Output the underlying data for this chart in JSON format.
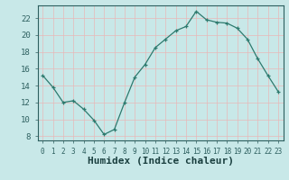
{
  "x": [
    0,
    1,
    2,
    3,
    4,
    5,
    6,
    7,
    8,
    9,
    10,
    11,
    12,
    13,
    14,
    15,
    16,
    17,
    18,
    19,
    20,
    21,
    22,
    23
  ],
  "y": [
    15.2,
    13.8,
    12.0,
    12.2,
    11.2,
    9.9,
    8.2,
    8.8,
    12.0,
    15.0,
    16.5,
    18.5,
    19.5,
    20.5,
    21.0,
    22.8,
    21.8,
    21.5,
    21.4,
    20.8,
    19.5,
    17.2,
    15.2,
    13.3
  ],
  "line_color": "#2d7a6e",
  "marker": "+",
  "bg_color": "#c8e8e8",
  "grid_color": "#f0f0f0",
  "tick_color": "#2d5f5f",
  "xlabel": "Humidex (Indice chaleur)",
  "xlabel_color": "#1a3f3f",
  "xlim": [
    -0.5,
    23.5
  ],
  "ylim": [
    7.5,
    23.5
  ],
  "yticks": [
    8,
    10,
    12,
    14,
    16,
    18,
    20,
    22
  ],
  "xticks": [
    0,
    1,
    2,
    3,
    4,
    5,
    6,
    7,
    8,
    9,
    10,
    11,
    12,
    13,
    14,
    15,
    16,
    17,
    18,
    19,
    20,
    21,
    22,
    23
  ]
}
